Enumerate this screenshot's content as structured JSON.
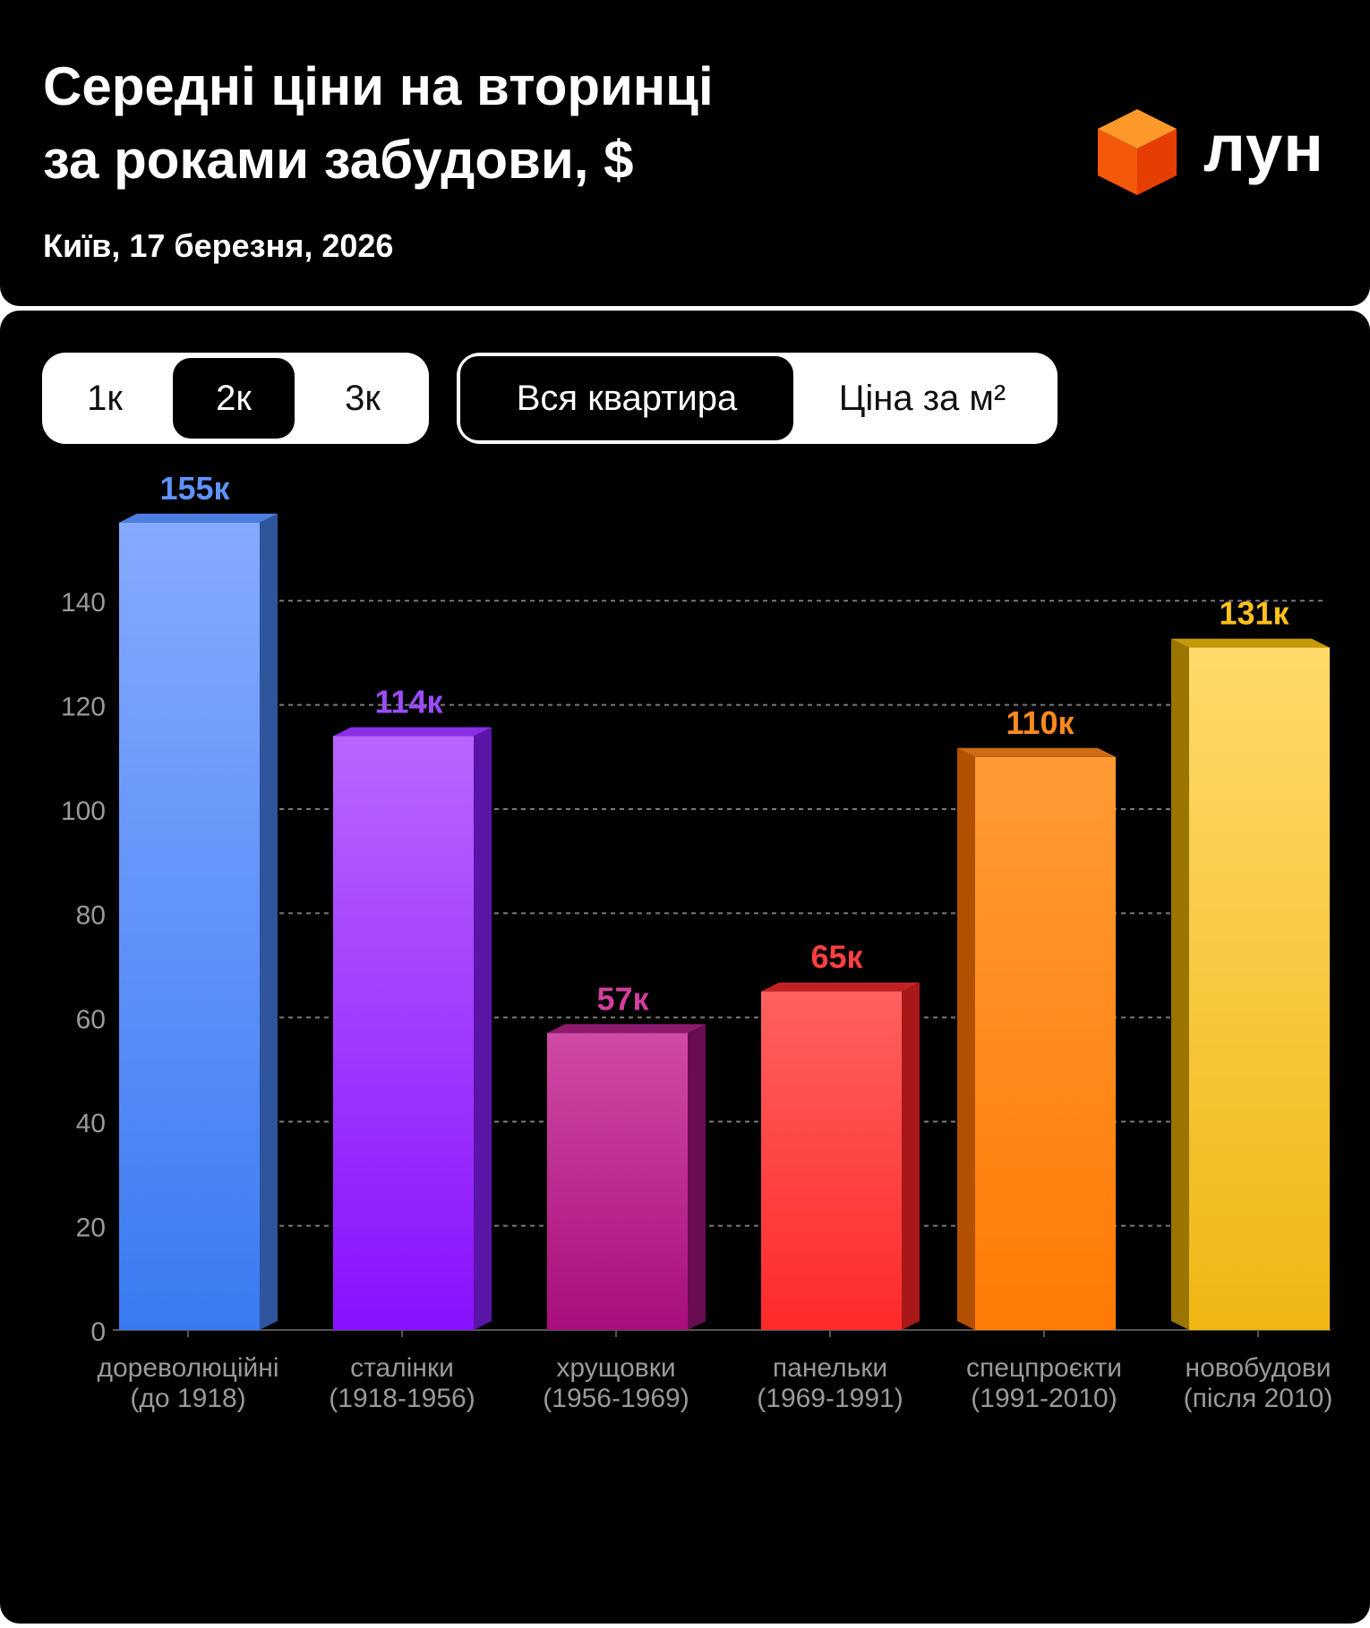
{
  "header": {
    "title_line1": "Середні ціни на вторинці",
    "title_line2": "за роками забудови, $",
    "subtitle": "Київ, 17 березня, 2026",
    "logo_text": "лун",
    "logo_icon": "orange-cube-icon"
  },
  "controls": {
    "rooms": {
      "options": [
        "1к",
        "2к",
        "3к"
      ],
      "selected": "2к"
    },
    "mode": {
      "options": [
        "Вся квартира",
        "Ціна за м²"
      ],
      "selected": "Вся квартира"
    }
  },
  "colors": {
    "background": "#000000",
    "grid": "#7a7a7a",
    "tick": "#9a9a9a"
  },
  "chart_data": {
    "type": "bar",
    "title": "Середні ціни на вторинці за роками забудови, $",
    "categories": [
      [
        "дореволюційні",
        "(до 1918)"
      ],
      [
        "сталінки",
        "(1918-1956)"
      ],
      [
        "хрущовки",
        "(1956-1969)"
      ],
      [
        "панельки",
        "(1969-1991)"
      ],
      [
        "спецпроєкти",
        "(1991-2010)"
      ],
      [
        "новобудови",
        "(після 2010)"
      ]
    ],
    "values": [
      155,
      114,
      57,
      65,
      110,
      131
    ],
    "labels": [
      "155к",
      "114к",
      "57к",
      "65к",
      "110к",
      "131к"
    ],
    "colors": [
      {
        "top": "#86aaff",
        "bottom": "#3a7bf2",
        "side": "#2f559c",
        "cap": "#4d7fe0",
        "label": "#5f93ff"
      },
      {
        "top": "#b865ff",
        "bottom": "#8a10ff",
        "side": "#5a14a8",
        "cap": "#8a2ee8",
        "label": "#9b4dff"
      },
      {
        "top": "#d04aa4",
        "bottom": "#a80e7c",
        "side": "#6a0c52",
        "cap": "#8e1a6e",
        "label": "#d13f9e"
      },
      {
        "top": "#ff6060",
        "bottom": "#ff2a2a",
        "side": "#a81818",
        "cap": "#c42222",
        "label": "#ff3f3f"
      },
      {
        "top": "#ff9b34",
        "bottom": "#ff7a05",
        "side": "#b35000",
        "cap": "#d06a14",
        "label": "#ff8a1c"
      },
      {
        "top": "#ffd96a",
        "bottom": "#f0b713",
        "side": "#9a7600",
        "cap": "#c69a08",
        "label": "#ffc21a"
      }
    ],
    "yticks": [
      0,
      20,
      40,
      60,
      80,
      100,
      120,
      140
    ],
    "ylim": [
      0,
      155
    ],
    "grid": true
  }
}
